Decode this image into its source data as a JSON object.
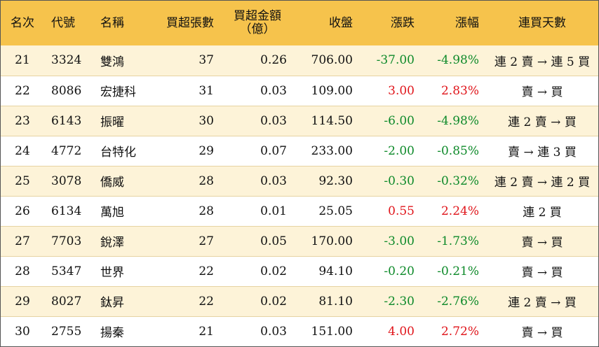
{
  "headers": {
    "rank": "名次",
    "code": "代號",
    "name": "名稱",
    "net_buy_lots": "買超張數",
    "net_buy_amount_line1": "買超金額",
    "net_buy_amount_line2": "（億）",
    "close": "收盤",
    "change": "漲跌",
    "change_pct": "漲幅",
    "streak": "連買天數"
  },
  "colors": {
    "header_bg": "#f6c34c",
    "stripe_bg": "#fdf3d8",
    "up": "#e0151b",
    "down": "#0e8a2a"
  },
  "rows": [
    {
      "rank": "21",
      "code": "3324",
      "name": "雙鴻",
      "lots": "37",
      "amount": "0.26",
      "close": "706.00",
      "change": "-37.00",
      "pct": "-4.98%",
      "streak": "連 2 賣 → 連 5 買",
      "dir": "down"
    },
    {
      "rank": "22",
      "code": "8086",
      "name": "宏捷科",
      "lots": "31",
      "amount": "0.03",
      "close": "109.00",
      "change": "3.00",
      "pct": "2.83%",
      "streak": "賣 → 買",
      "dir": "up"
    },
    {
      "rank": "23",
      "code": "6143",
      "name": "振曜",
      "lots": "30",
      "amount": "0.03",
      "close": "114.50",
      "change": "-6.00",
      "pct": "-4.98%",
      "streak": "連 2 賣 → 買",
      "dir": "down"
    },
    {
      "rank": "24",
      "code": "4772",
      "name": "台特化",
      "lots": "29",
      "amount": "0.07",
      "close": "233.00",
      "change": "-2.00",
      "pct": "-0.85%",
      "streak": "賣 → 連 3 買",
      "dir": "down"
    },
    {
      "rank": "25",
      "code": "3078",
      "name": "僑威",
      "lots": "28",
      "amount": "0.03",
      "close": "92.30",
      "change": "-0.30",
      "pct": "-0.32%",
      "streak": "連 2 賣 → 連 2 買",
      "dir": "down"
    },
    {
      "rank": "26",
      "code": "6134",
      "name": "萬旭",
      "lots": "28",
      "amount": "0.01",
      "close": "25.05",
      "change": "0.55",
      "pct": "2.24%",
      "streak": "連 2 買",
      "dir": "up"
    },
    {
      "rank": "27",
      "code": "7703",
      "name": "銳澤",
      "lots": "27",
      "amount": "0.05",
      "close": "170.00",
      "change": "-3.00",
      "pct": "-1.73%",
      "streak": "賣 → 買",
      "dir": "down"
    },
    {
      "rank": "28",
      "code": "5347",
      "name": "世界",
      "lots": "22",
      "amount": "0.02",
      "close": "94.10",
      "change": "-0.20",
      "pct": "-0.21%",
      "streak": "賣 → 買",
      "dir": "down"
    },
    {
      "rank": "29",
      "code": "8027",
      "name": "鈦昇",
      "lots": "22",
      "amount": "0.02",
      "close": "81.10",
      "change": "-2.30",
      "pct": "-2.76%",
      "streak": "連 2 賣 → 買",
      "dir": "down"
    },
    {
      "rank": "30",
      "code": "2755",
      "name": "揚秦",
      "lots": "21",
      "amount": "0.03",
      "close": "151.00",
      "change": "4.00",
      "pct": "2.72%",
      "streak": "賣 → 買",
      "dir": "up"
    }
  ]
}
